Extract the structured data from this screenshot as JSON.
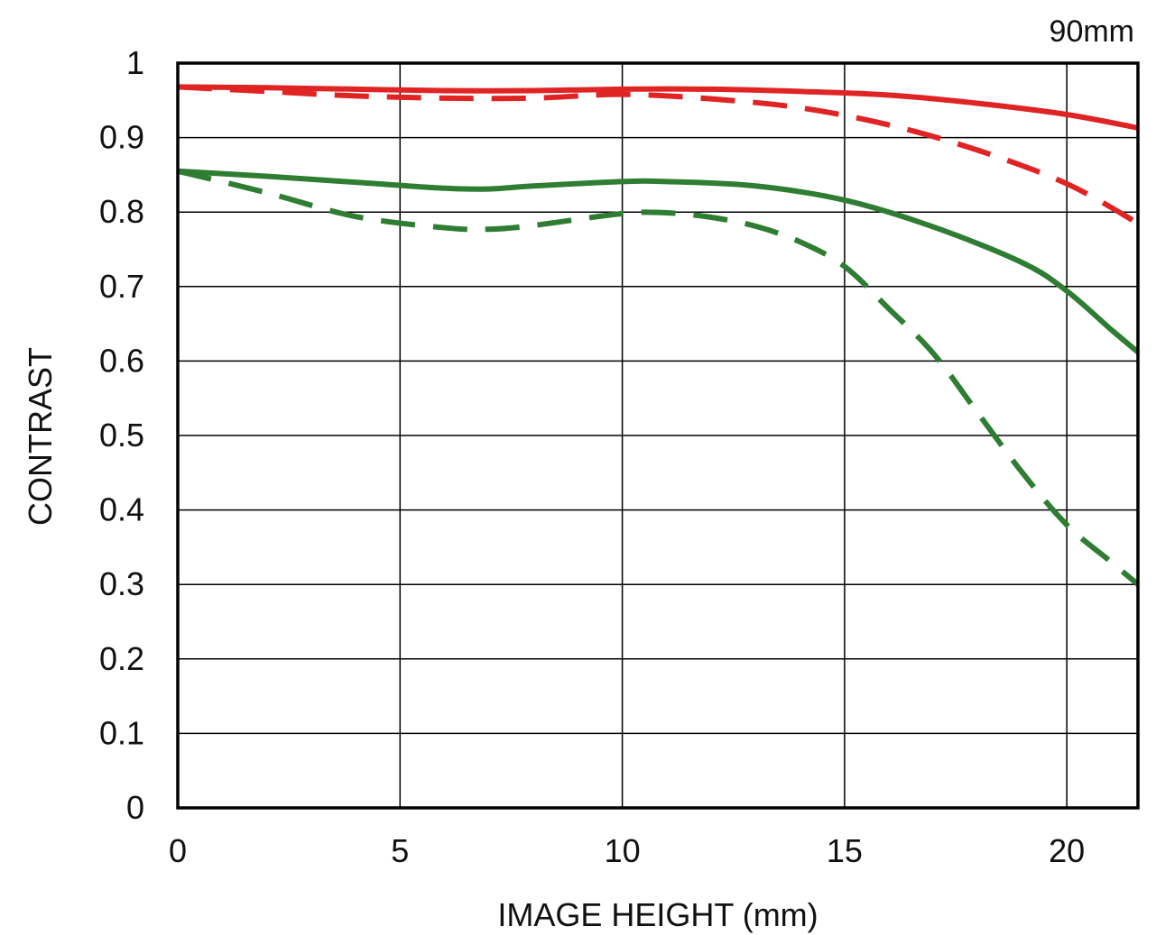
{
  "chart_data": {
    "type": "line",
    "title": "",
    "corner_label": "90mm",
    "xlabel": "IMAGE HEIGHT (mm)",
    "ylabel": "CONTRAST",
    "xlim": [
      0,
      21.6
    ],
    "ylim": [
      0,
      1
    ],
    "x_ticks": [
      "0",
      "5",
      "10",
      "15",
      "20"
    ],
    "y_ticks": [
      "0",
      "0.1",
      "0.2",
      "0.3",
      "0.4",
      "0.5",
      "0.6",
      "0.7",
      "0.8",
      "0.9",
      "1"
    ],
    "grid": true,
    "legend": "none",
    "series": [
      {
        "color": "#e02424",
        "style": "solid",
        "points": [
          [
            0,
            0.968
          ],
          [
            2,
            0.967
          ],
          [
            4,
            0.965
          ],
          [
            6,
            0.963
          ],
          [
            8,
            0.963
          ],
          [
            10,
            0.965
          ],
          [
            12,
            0.965
          ],
          [
            14,
            0.962
          ],
          [
            16,
            0.957
          ],
          [
            18,
            0.946
          ],
          [
            20,
            0.931
          ],
          [
            21.6,
            0.913
          ]
        ]
      },
      {
        "color": "#e02424",
        "style": "dashed",
        "points": [
          [
            0,
            0.968
          ],
          [
            2,
            0.962
          ],
          [
            4,
            0.956
          ],
          [
            6,
            0.953
          ],
          [
            8,
            0.953
          ],
          [
            10,
            0.958
          ],
          [
            12,
            0.952
          ],
          [
            14,
            0.94
          ],
          [
            16,
            0.917
          ],
          [
            18,
            0.883
          ],
          [
            20,
            0.838
          ],
          [
            21.6,
            0.785
          ]
        ]
      },
      {
        "color": "#2e7d32",
        "style": "solid",
        "points": [
          [
            0,
            0.855
          ],
          [
            2,
            0.848
          ],
          [
            4,
            0.84
          ],
          [
            6,
            0.832
          ],
          [
            7,
            0.831
          ],
          [
            8,
            0.835
          ],
          [
            10,
            0.841
          ],
          [
            11,
            0.841
          ],
          [
            13,
            0.835
          ],
          [
            15,
            0.816
          ],
          [
            17,
            0.78
          ],
          [
            19,
            0.732
          ],
          [
            20,
            0.694
          ],
          [
            21,
            0.642
          ],
          [
            21.6,
            0.612
          ]
        ]
      },
      {
        "color": "#2e7d32",
        "style": "dashed",
        "points": [
          [
            0,
            0.855
          ],
          [
            2,
            0.826
          ],
          [
            4,
            0.794
          ],
          [
            6,
            0.779
          ],
          [
            7,
            0.777
          ],
          [
            8,
            0.782
          ],
          [
            10,
            0.798
          ],
          [
            11,
            0.799
          ],
          [
            12,
            0.793
          ],
          [
            13,
            0.781
          ],
          [
            14,
            0.76
          ],
          [
            15,
            0.727
          ],
          [
            16,
            0.67
          ],
          [
            17,
            0.61
          ],
          [
            18,
            0.53
          ],
          [
            19,
            0.45
          ],
          [
            20,
            0.38
          ],
          [
            21,
            0.33
          ],
          [
            21.6,
            0.3
          ]
        ]
      }
    ]
  }
}
